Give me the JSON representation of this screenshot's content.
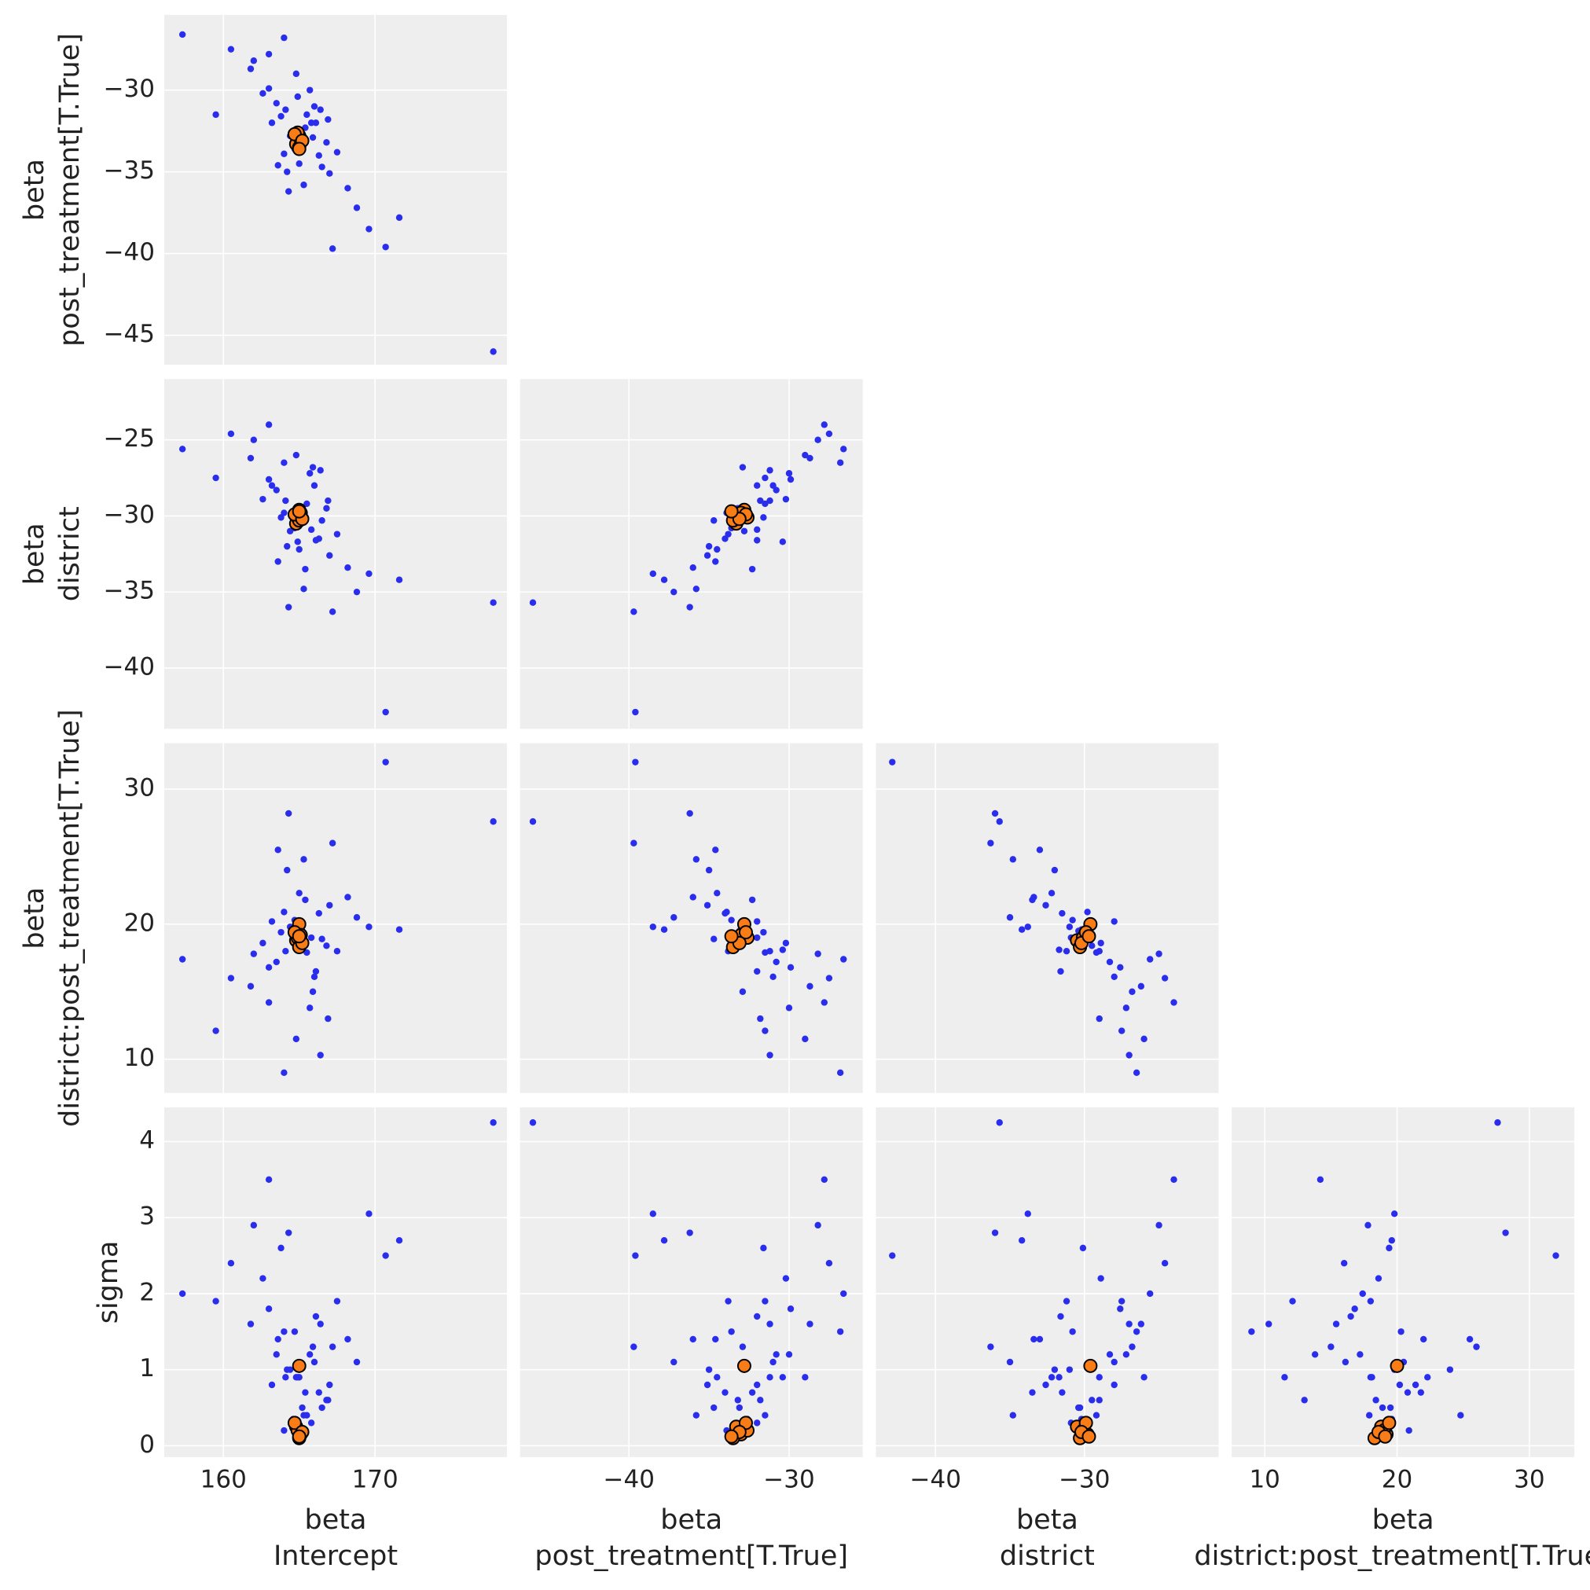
{
  "chart_data": {
    "type": "pair",
    "point_color": "#2a2eec",
    "divergent_color": "#fa7c17",
    "divergent_edge": "#000000",
    "background": "#eeeeee",
    "grid": true,
    "variables": [
      {
        "label": [
          "beta",
          "Intercept"
        ],
        "lim": [
          156.1,
          178.7
        ],
        "xticks": [
          160,
          170
        ],
        "yticks": [],
        "values": [
          165.2,
          164.1,
          166.3,
          163.5,
          165.8,
          164.7,
          167.0,
          163.0,
          165.5,
          164.4,
          166.8,
          162.6,
          165.0,
          166.0,
          164.0,
          168.2,
          161.8,
          165.4,
          165.9,
          163.8,
          166.5,
          164.9,
          167.5,
          163.2,
          165.1,
          164.6,
          166.1,
          164.2,
          165.7,
          162.0,
          168.8,
          160.5,
          166.9,
          163.6,
          169.6,
          164.8,
          165.3,
          163.0,
          166.4,
          164.3,
          171.6,
          159.5,
          167.2,
          164.0,
          157.3,
          177.8,
          170.7
        ],
        "divergent": [
          165.0,
          164.8,
          165.1,
          164.9,
          165.0,
          164.7,
          165.2,
          165.0
        ]
      },
      {
        "label": [
          "beta",
          "post_treatment[T.True]"
        ],
        "lim": [
          -46.8,
          -25.4
        ],
        "xticks": [
          {
            "value": -40,
            "label": "−40"
          },
          {
            "value": -30,
            "label": "−30"
          }
        ],
        "yticks": [
          {
            "value": -45,
            "label": "−45"
          },
          {
            "value": -40,
            "label": "−40"
          },
          {
            "value": -35,
            "label": "−35"
          },
          {
            "value": -30,
            "label": "−30"
          }
        ],
        "values": [
          -33.1,
          -31.2,
          -34.0,
          -30.8,
          -32.0,
          -33.6,
          -35.1,
          -29.9,
          -31.5,
          -32.8,
          -33.2,
          -30.2,
          -34.5,
          -31.0,
          -33.9,
          -36.0,
          -28.7,
          -32.3,
          -32.9,
          -31.6,
          -34.7,
          -30.4,
          -33.8,
          -32.0,
          -33.3,
          -32.6,
          -32.0,
          -35.0,
          -30.0,
          -28.2,
          -37.2,
          -27.5,
          -31.8,
          -34.6,
          -38.5,
          -29.0,
          -35.8,
          -27.8,
          -31.2,
          -36.2,
          -37.8,
          -31.5,
          -39.7,
          -26.8,
          -26.6,
          -46.0,
          -39.6
        ],
        "divergent": [
          -32.8,
          -33.3,
          -33.0,
          -32.6,
          -33.5,
          -32.7,
          -33.1,
          -33.6
        ]
      },
      {
        "label": [
          "beta",
          "district"
        ],
        "lim": [
          -44.0,
          -21.0
        ],
        "xticks": [
          {
            "value": -40,
            "label": "−40"
          },
          {
            "value": -30,
            "label": "−30"
          }
        ],
        "yticks": [
          {
            "value": -40,
            "label": "−40"
          },
          {
            "value": -35,
            "label": "−35"
          },
          {
            "value": -30,
            "label": "−30"
          },
          {
            "value": -25,
            "label": "−25"
          }
        ],
        "values": [
          -30.4,
          -29.0,
          -31.5,
          -28.3,
          -30.9,
          -30.8,
          -32.6,
          -27.6,
          -29.2,
          -31.0,
          -29.5,
          -28.9,
          -32.2,
          -28.0,
          -29.8,
          -33.4,
          -26.2,
          -33.5,
          -26.8,
          -30.1,
          -30.3,
          -31.7,
          -31.2,
          -28.0,
          -29.9,
          -30.2,
          -31.6,
          -32.0,
          -27.2,
          -25.0,
          -35.0,
          -24.6,
          -29.0,
          -33.0,
          -33.8,
          -26.0,
          -34.8,
          -24.0,
          -27.0,
          -36.0,
          -34.2,
          -27.5,
          -36.3,
          -26.5,
          -25.6,
          -35.7,
          -42.9
        ],
        "divergent": [
          -29.6,
          -30.5,
          -29.8,
          -30.1,
          -30.3,
          -29.9,
          -30.2,
          -29.7
        ]
      },
      {
        "label": [
          "beta",
          "district:post_treatment[T.True]"
        ],
        "lim": [
          7.5,
          33.4
        ],
        "xticks": [
          10,
          20,
          30
        ],
        "yticks": [
          10,
          20,
          30
        ],
        "values": [
          19.5,
          18.0,
          20.8,
          17.2,
          19.0,
          20.3,
          21.4,
          16.8,
          17.9,
          19.8,
          18.4,
          18.6,
          22.3,
          16.1,
          20.9,
          22.0,
          15.4,
          21.8,
          15.0,
          19.4,
          18.9,
          18.1,
          18.0,
          20.2,
          19.1,
          19.6,
          16.5,
          24.0,
          13.8,
          17.8,
          20.5,
          16.0,
          13.0,
          25.5,
          19.8,
          11.5,
          24.8,
          14.2,
          10.3,
          28.2,
          19.6,
          12.1,
          26.0,
          9.0,
          17.4,
          27.6,
          32.0
        ],
        "divergent": [
          20.0,
          18.8,
          19.2,
          19.0,
          18.3,
          19.4,
          18.6,
          19.1
        ]
      },
      {
        "label": [
          "sigma"
        ],
        "lim": [
          -0.15,
          4.45
        ],
        "xticks": [],
        "yticks": [
          0,
          1,
          2,
          3,
          4
        ],
        "values": [
          0.5,
          0.9,
          0.7,
          1.2,
          0.3,
          1.5,
          0.8,
          1.8,
          0.4,
          1.0,
          0.6,
          2.2,
          0.9,
          1.1,
          0.2,
          1.4,
          1.6,
          0.7,
          1.3,
          2.6,
          0.5,
          0.9,
          1.9,
          0.8,
          0.15,
          0.35,
          1.7,
          1.0,
          1.2,
          2.9,
          1.1,
          2.4,
          0.6,
          1.4,
          3.05,
          0.9,
          0.4,
          3.5,
          1.6,
          2.8,
          2.7,
          1.9,
          1.3,
          1.5,
          2.0,
          4.25,
          2.5
        ],
        "divergent": [
          1.05,
          0.25,
          0.15,
          0.2,
          0.1,
          0.3,
          0.18,
          0.12
        ]
      }
    ]
  }
}
